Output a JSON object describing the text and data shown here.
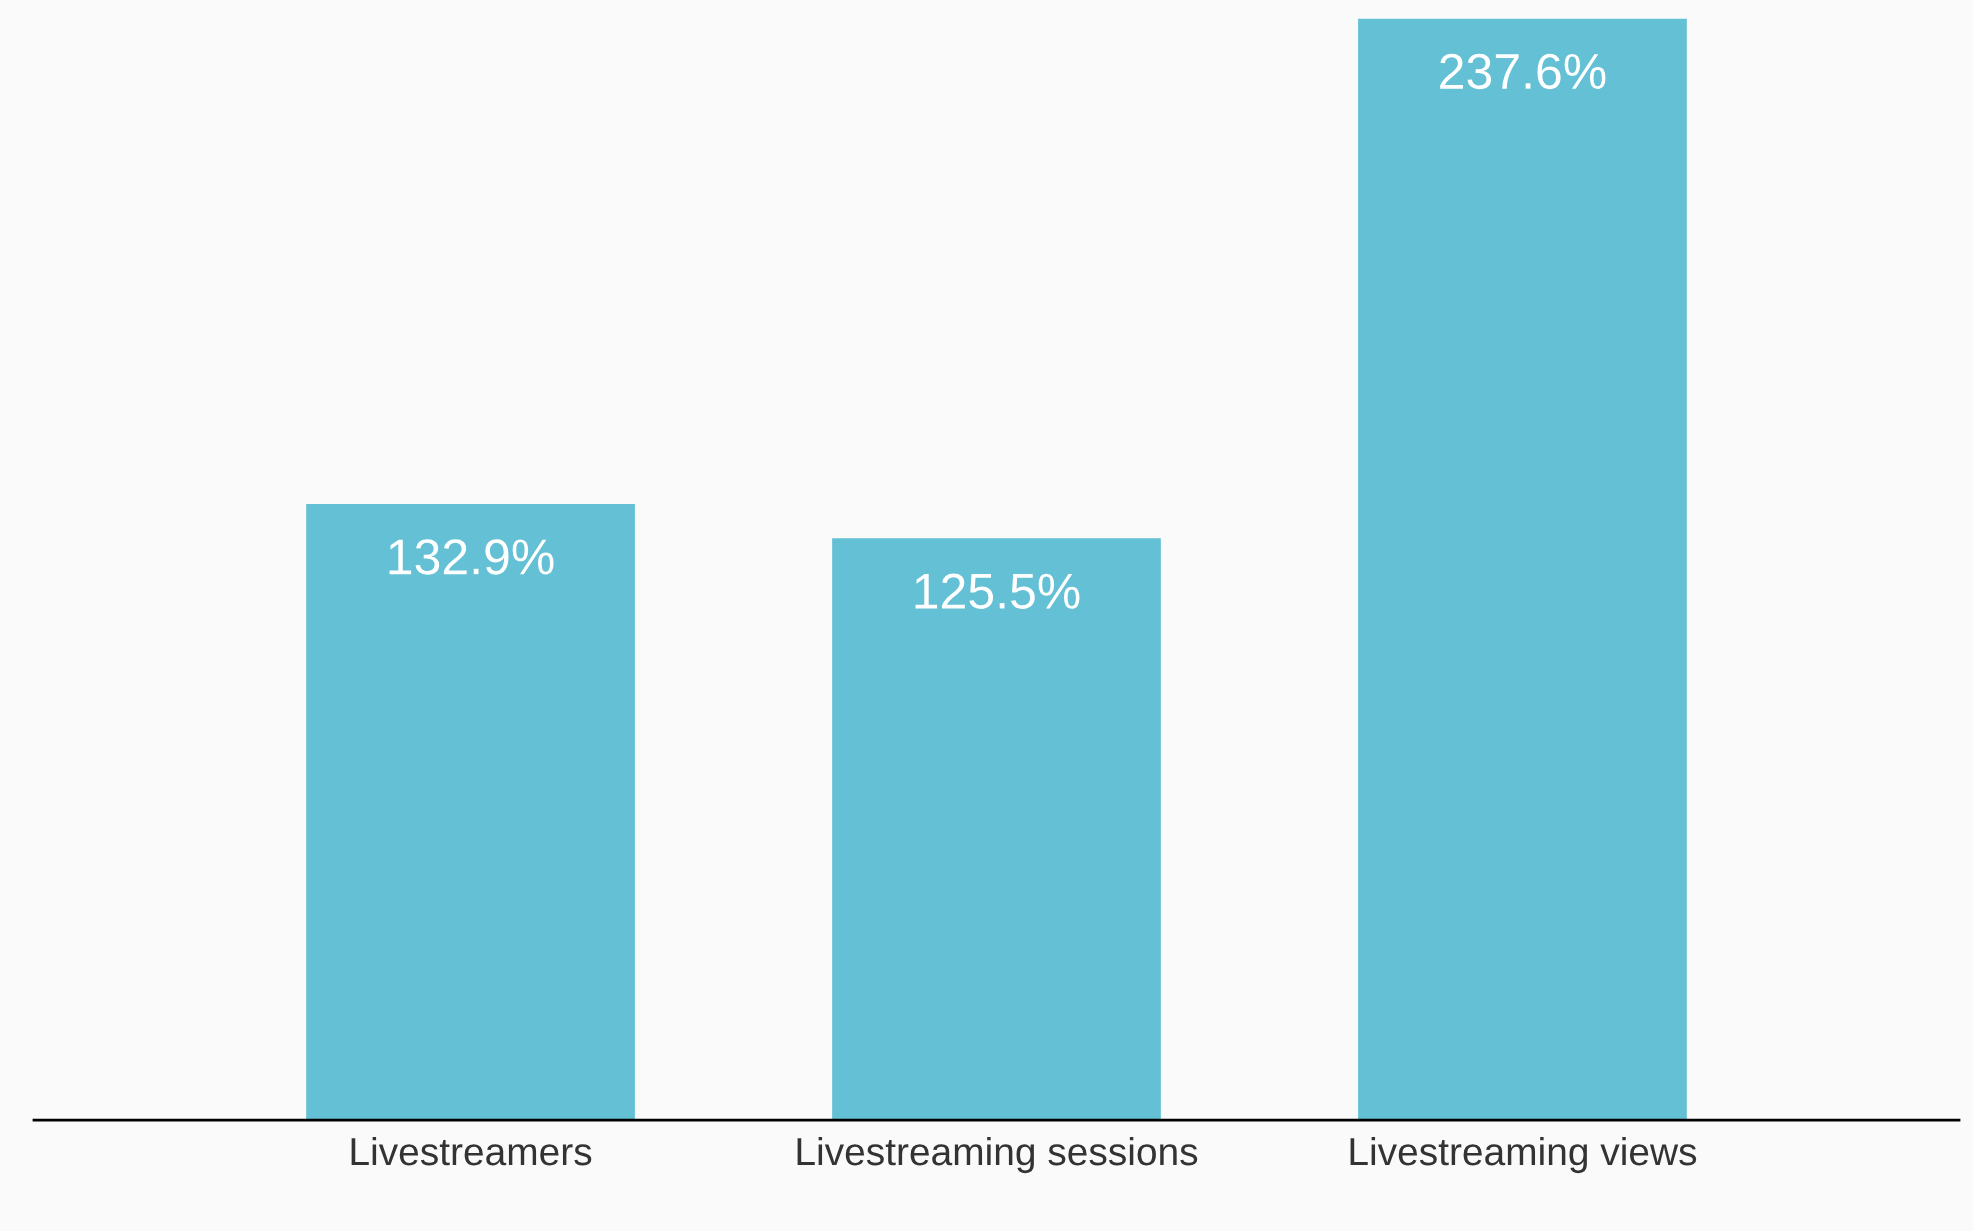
{
  "chart_data": {
    "type": "bar",
    "categories": [
      "Livestreamers",
      "Livestreaming sessions",
      "Livestreaming views"
    ],
    "values": [
      132.9,
      125.5,
      237.6
    ],
    "value_labels": [
      "132.9%",
      "125.5%",
      "237.6%"
    ],
    "color": "#64c1d5",
    "grid": false,
    "legend": false
  }
}
